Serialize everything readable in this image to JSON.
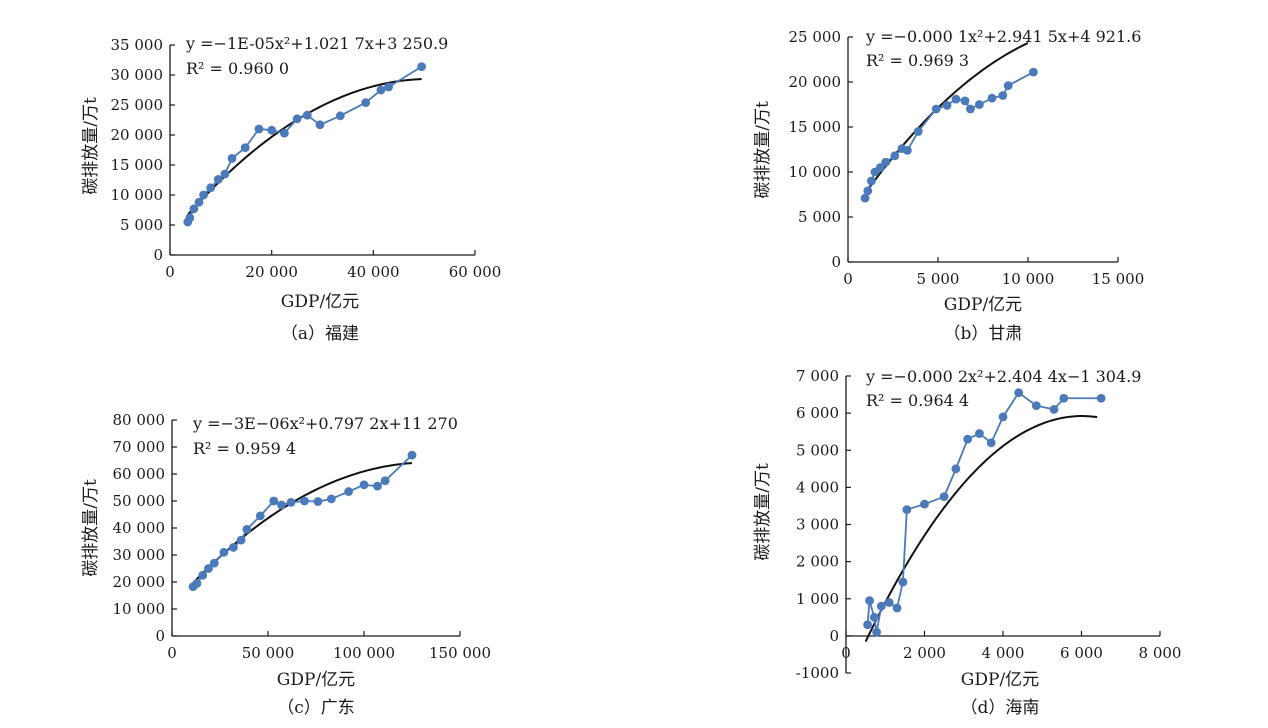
{
  "chart_data": [
    {
      "type": "scatter",
      "caption": "（a）福建",
      "xlabel": "GDP/亿元",
      "ylabel": "碳排放量/万t",
      "xlim": [
        0,
        60000
      ],
      "ylim": [
        0,
        35000
      ],
      "xticks": [
        0,
        20000,
        40000,
        60000
      ],
      "yticks": [
        0,
        5000,
        10000,
        15000,
        20000,
        25000,
        30000,
        35000
      ],
      "xtick_labels": [
        "0",
        "20 000",
        "40 000",
        "60 000"
      ],
      "ytick_labels": [
        "0",
        "5 000",
        "10 000",
        "15 000",
        "20 000",
        "25 000",
        "30 000",
        "35 000"
      ],
      "equation": "y =−1E-05x²+1.021 7x+3 250.9",
      "r2": "R² = 0.960 0",
      "fit": {
        "a": -1e-05,
        "b": 1.0217,
        "c": 3250.9,
        "xmin": 3500,
        "xmax": 49500
      },
      "series": [
        {
          "name": "实测值",
          "color": "#4a7ab9",
          "x": [
            3500,
            3900,
            4700,
            5700,
            6600,
            8000,
            9500,
            10800,
            12200,
            14800,
            17500,
            20000,
            22500,
            25000,
            27000,
            29500,
            33500,
            38500,
            41500,
            43000,
            49500
          ],
          "y": [
            5500,
            6200,
            7700,
            8800,
            10000,
            11200,
            12600,
            13500,
            16100,
            17900,
            21000,
            20800,
            20300,
            22700,
            23300,
            21700,
            23200,
            25400,
            27500,
            28000,
            31400
          ]
        }
      ]
    },
    {
      "type": "scatter",
      "caption": "（b）甘肃",
      "xlabel": "GDP/亿元",
      "ylabel": "碳排放量/万t",
      "xlim": [
        0,
        15000
      ],
      "ylim": [
        0,
        25000
      ],
      "xticks": [
        0,
        5000,
        10000,
        15000
      ],
      "yticks": [
        0,
        5000,
        10000,
        15000,
        20000,
        25000
      ],
      "xtick_labels": [
        "0",
        "5 000",
        "10 000",
        "15 000"
      ],
      "ytick_labels": [
        "0",
        "5 000",
        "10 000",
        "15 000",
        "20 000",
        "25 000"
      ],
      "equation": "y =−0.000 1x²+2.941 5x+4 921.6",
      "r2": "R² = 0.969 3",
      "fit": {
        "a": -0.0001,
        "b": 2.9415,
        "c": 4921.6,
        "xmin": 1000,
        "xmax": 10000
      },
      "series": [
        {
          "name": "实测值",
          "color": "#4a7ab9",
          "x": [
            950,
            1100,
            1300,
            1500,
            1800,
            2100,
            2600,
            3000,
            3300,
            3900,
            4900,
            5500,
            6000,
            6500,
            6800,
            7300,
            8000,
            8600,
            8900,
            10300
          ],
          "y": [
            7100,
            7900,
            9000,
            10000,
            10500,
            11100,
            11800,
            12600,
            12400,
            14500,
            17000,
            17400,
            18100,
            17900,
            17000,
            17500,
            18200,
            18500,
            19600,
            21100
          ]
        }
      ]
    },
    {
      "type": "scatter",
      "caption": "（c）广东",
      "xlabel": "GDP/亿元",
      "ylabel": "碳排放量/万t",
      "xlim": [
        0,
        150000
      ],
      "ylim": [
        0,
        80000
      ],
      "xticks": [
        0,
        50000,
        100000,
        150000
      ],
      "yticks": [
        0,
        10000,
        20000,
        30000,
        40000,
        50000,
        60000,
        70000,
        80000
      ],
      "xtick_labels": [
        "0",
        "50 000",
        "100 000",
        "150 000"
      ],
      "ytick_labels": [
        "0",
        "10 000",
        "20 000",
        "30 000",
        "40 000",
        "50 000",
        "60 000",
        "70 000",
        "80 000"
      ],
      "equation": "y =−3E−06x²+0.797 2x+11 270",
      "r2": "R² = 0.959 4",
      "fit": {
        "a": -3e-06,
        "b": 0.7972,
        "c": 11270,
        "xmin": 11000,
        "xmax": 125000
      },
      "series": [
        {
          "name": "实测值",
          "color": "#4a7ab9",
          "x": [
            11000,
            13000,
            16000,
            19000,
            22000,
            27000,
            32000,
            36000,
            39000,
            46000,
            53000,
            57000,
            62000,
            69000,
            76000,
            83000,
            92000,
            100000,
            107000,
            111000,
            125000
          ],
          "y": [
            18300,
            19500,
            22500,
            25000,
            27000,
            31000,
            32800,
            35500,
            39500,
            44500,
            50000,
            48500,
            49500,
            50000,
            49800,
            50800,
            53500,
            56000,
            55500,
            57500,
            67000
          ]
        }
      ]
    },
    {
      "type": "scatter",
      "caption": "（d）海南",
      "xlabel": "GDP/亿元",
      "ylabel": "碳排放量/万t",
      "xlim": [
        0,
        8000
      ],
      "ylim": [
        -1000,
        7000
      ],
      "xticks": [
        0,
        2000,
        4000,
        6000,
        8000
      ],
      "yticks": [
        -1000,
        0,
        1000,
        2000,
        3000,
        4000,
        5000,
        6000,
        7000
      ],
      "xtick_labels": [
        "0",
        "2 000",
        "4 000",
        "6 000",
        "8 000"
      ],
      "ytick_labels": [
        "-1000",
        "0",
        "1 000",
        "2 000",
        "3 000",
        "4 000",
        "5 000",
        "6 000",
        "7 000"
      ],
      "equation": "y =−0.000 2x²+2.404 4x−1 304.9",
      "r2": "R² = 0.964 4",
      "fit": {
        "a": -0.0002,
        "b": 2.4044,
        "c": -1304.9,
        "xmin": 500,
        "xmax": 6400
      },
      "series": [
        {
          "name": "实测值",
          "color": "#4a7ab9",
          "x": [
            550,
            600,
            720,
            780,
            900,
            1100,
            1300,
            1450,
            1550,
            2000,
            2500,
            2800,
            3100,
            3400,
            3700,
            4000,
            4400,
            4850,
            5300,
            5550,
            6500
          ],
          "y": [
            300,
            950,
            500,
            100,
            800,
            900,
            750,
            1450,
            3400,
            3550,
            3750,
            4500,
            5300,
            5450,
            5200,
            5900,
            6550,
            6200,
            6100,
            6400,
            6400
          ]
        }
      ]
    }
  ]
}
